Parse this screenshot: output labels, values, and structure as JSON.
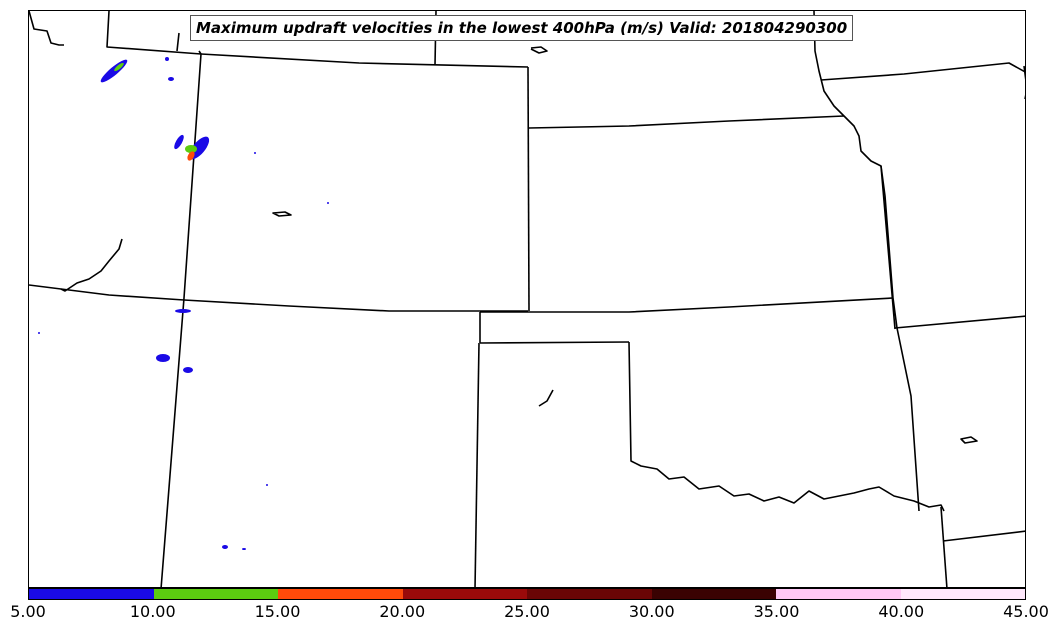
{
  "title": "Maximum updraft velocities in the lowest 400hPa (m/s) Valid: 201804290300",
  "colorbar": {
    "ticks": [
      "5.00",
      "10.00",
      "15.00",
      "20.00",
      "25.00",
      "30.00",
      "35.00",
      "40.00",
      "45.00"
    ],
    "colors": [
      "#1a0ae6",
      "#5ccc10",
      "#ff4a0a",
      "#9a0a0a",
      "#6a0505",
      "#3a0202",
      "#ffc8f5",
      "#ffe8fc"
    ]
  },
  "chart_data": {
    "type": "heatmap",
    "title": "Maximum updraft velocities in the lowest 400hPa (m/s) Valid: 201804290300",
    "colorbar_range": [
      5,
      45
    ],
    "levels": [
      5,
      10,
      15,
      20,
      25,
      30,
      35,
      40,
      45
    ],
    "units": "m/s"
  }
}
